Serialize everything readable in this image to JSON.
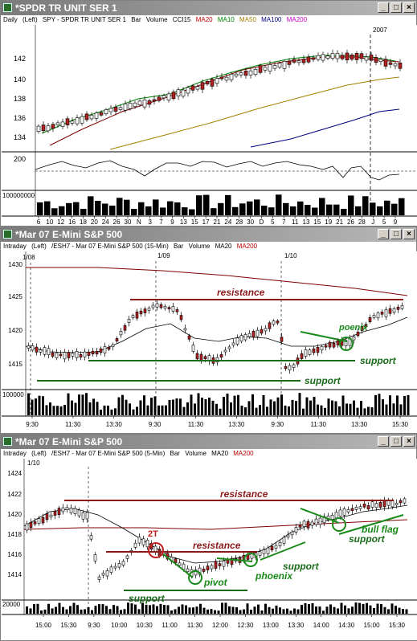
{
  "windows": [
    {
      "title": "*SPDR TR UNIT SER 1",
      "info": [
        {
          "text": "Daily",
          "color": "#000000"
        },
        {
          "text": "(Left)",
          "color": "#000000"
        },
        {
          "text": "SPY - SPDR TR UNIT SER 1",
          "color": "#000000"
        },
        {
          "text": "Bar",
          "color": "#000000"
        },
        {
          "text": "Volume",
          "color": "#000000"
        },
        {
          "text": "CCI15",
          "color": "#000000"
        },
        {
          "text": "MA20",
          "color": "#c00000"
        },
        {
          "text": "MA10",
          "color": "#008000"
        },
        {
          "text": "MA50",
          "color": "#a08000"
        },
        {
          "text": "MA100",
          "color": "#000080"
        },
        {
          "text": "MA200",
          "color": "#c000c0"
        }
      ],
      "y_ticks": [
        "142",
        "140",
        "138",
        "136",
        "134"
      ],
      "cci_ticks": [
        "200"
      ],
      "volume_tick": "100000000",
      "x_ticks": [
        "6",
        "10",
        "12",
        "16",
        "18",
        "20",
        "24",
        "26",
        "30",
        "N",
        "3",
        "7",
        "9",
        "13",
        "15",
        "17",
        "21",
        "24",
        "28",
        "30",
        "D",
        "5",
        "7",
        "11",
        "13",
        "15",
        "19",
        "21",
        "26",
        "28",
        "J",
        "5",
        "9"
      ],
      "marker": "2007"
    },
    {
      "title": "*Mar 07  E-Mini S&P 500",
      "info": [
        {
          "text": "Intraday",
          "color": "#000000"
        },
        {
          "text": "(Left)",
          "color": "#000000"
        },
        {
          "text": "/ESH7 - Mar 07 E-Mini S&P 500 (15-Min)",
          "color": "#000000"
        },
        {
          "text": "Bar",
          "color": "#000000"
        },
        {
          "text": "Volume",
          "color": "#000000"
        },
        {
          "text": "MA20",
          "color": "#000000"
        },
        {
          "text": "MA200",
          "color": "#c00000"
        }
      ],
      "date_labels": [
        "1/08",
        "1/09",
        "1/10"
      ],
      "y_ticks": [
        "1430",
        "1425",
        "1420",
        "1415"
      ],
      "volume_tick": "100000",
      "x_ticks": [
        "9:30",
        "11:30",
        "13:30",
        "9:30",
        "11:30",
        "13:30",
        "9:30",
        "11:30",
        "13:30",
        "15:30"
      ],
      "annotations": {
        "resistance": "resistance",
        "poenix": "poenix",
        "support_right": "support",
        "support_bottom": "support"
      }
    },
    {
      "title": "*Mar 07  E-Mini S&P 500",
      "info": [
        {
          "text": "Intraday",
          "color": "#000000"
        },
        {
          "text": "(Left)",
          "color": "#000000"
        },
        {
          "text": "/ESH7 - Mar 07 E-Mini S&P 500 (5-Min)",
          "color": "#000000"
        },
        {
          "text": "Bar",
          "color": "#000000"
        },
        {
          "text": "Volume",
          "color": "#000000"
        },
        {
          "text": "MA20",
          "color": "#000000"
        },
        {
          "text": "MA200",
          "color": "#c00000"
        }
      ],
      "date_labels": [
        "1/10"
      ],
      "y_ticks": [
        "1424",
        "1422",
        "1420",
        "1418",
        "1416",
        "1414"
      ],
      "volume_tick": "20000",
      "x_ticks": [
        "15:00",
        "15:30",
        "9:30",
        "10:00",
        "10:30",
        "11:00",
        "11:30",
        "12:00",
        "12:30",
        "13:00",
        "13:30",
        "14:00",
        "14:30",
        "15:00",
        "15:30"
      ],
      "annotations": {
        "resistance_top": "resistance",
        "resistance_mid": "resistance",
        "two_t": "2T",
        "pivot": "pivot",
        "phoenix": "phoenix",
        "support_mid": "support",
        "support_left": "support",
        "bull_flag": "bull flag",
        "support_right": "support"
      }
    }
  ],
  "window_buttons": {
    "minimize": "_",
    "maximize": "□",
    "close": "×"
  }
}
